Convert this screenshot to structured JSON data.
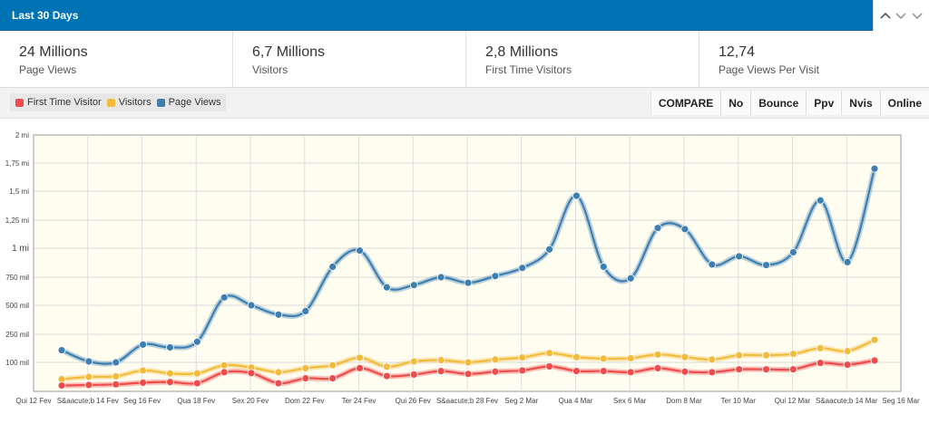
{
  "header": {
    "title": "Last 30 Days"
  },
  "stats": [
    {
      "value": "24 Millions",
      "label": "Page Views"
    },
    {
      "value": "6,7 Millions",
      "label": "Visitors"
    },
    {
      "value": "2,8 Millions",
      "label": "First Time Visitors"
    },
    {
      "value": "12,74",
      "label": "Page Views Per Visit"
    }
  ],
  "legend": [
    {
      "label": "First Time Visitor",
      "color": "#ef4b4b"
    },
    {
      "label": "Visitors",
      "color": "#f2bb3c"
    },
    {
      "label": "Page Views",
      "color": "#3d7fb1"
    }
  ],
  "toolbar": {
    "buttons": [
      "COMPARE",
      "No",
      "Bounce",
      "Ppv",
      "Nvis",
      "Online"
    ]
  },
  "chart_data": {
    "type": "line",
    "title": "",
    "xlabel": "",
    "ylabel": "",
    "y_ticks": [
      {
        "value": 0,
        "label": ""
      },
      {
        "value": 100000,
        "label": "100 mil"
      },
      {
        "value": 250000,
        "label": "250 mil"
      },
      {
        "value": 500000,
        "label": "500 mil"
      },
      {
        "value": 750000,
        "label": "750 mil"
      },
      {
        "value": 1000000,
        "label": "1 mi"
      },
      {
        "value": 1250000,
        "label": "1,25 mi"
      },
      {
        "value": 1500000,
        "label": "1,5 mi"
      },
      {
        "value": 1750000,
        "label": "1,75 mi"
      },
      {
        "value": 2000000,
        "label": "2 mi"
      }
    ],
    "x_labels": [
      "Qui 12 Fev",
      "S&aacute;b 14 Fev",
      "Seg 16 Fev",
      "Qua 18 Fev",
      "Sex 20 Fev",
      "Dom 22 Fev",
      "Ter 24 Fev",
      "Qui 26 Fev",
      "S&aacute;b 28 Fev",
      "Seg 2 Mar",
      "Qua 4 Mar",
      "Sex 6 Mar",
      "Dom 8 Mar",
      "Ter 10 Mar",
      "Qui 12 Mar",
      "S&aacute;b 14 Mar",
      "Seg 16 Mar"
    ],
    "series": [
      {
        "name": "Page Views",
        "color": "#3d7fb1",
        "values": [
          165000,
          105000,
          100000,
          195000,
          180000,
          210000,
          570000,
          500000,
          420000,
          450000,
          840000,
          980000,
          660000,
          680000,
          750000,
          700000,
          760000,
          830000,
          990000,
          1460000,
          840000,
          740000,
          1180000,
          1170000,
          860000,
          930000,
          855000,
          965000,
          1420000,
          880000,
          1700000
        ]
      },
      {
        "name": "Visitors",
        "color": "#f2bb3c",
        "values": [
          42000,
          50000,
          52000,
          72000,
          62000,
          62000,
          90000,
          82000,
          66000,
          80000,
          90000,
          125000,
          85000,
          105000,
          112000,
          100000,
          115000,
          126000,
          150000,
          128000,
          120000,
          122000,
          142000,
          128000,
          115000,
          138000,
          138000,
          145000,
          176000,
          160000,
          220000
        ]
      },
      {
        "name": "First Time Visitor",
        "color": "#ef4b4b",
        "values": [
          20000,
          22000,
          24000,
          30000,
          32000,
          28000,
          66000,
          63000,
          28000,
          45000,
          45000,
          80000,
          53000,
          58000,
          70000,
          60000,
          68000,
          72000,
          86000,
          70000,
          70000,
          66000,
          80000,
          68000,
          66000,
          76000,
          76000,
          76000,
          98000,
          92000,
          110000
        ]
      }
    ]
  }
}
